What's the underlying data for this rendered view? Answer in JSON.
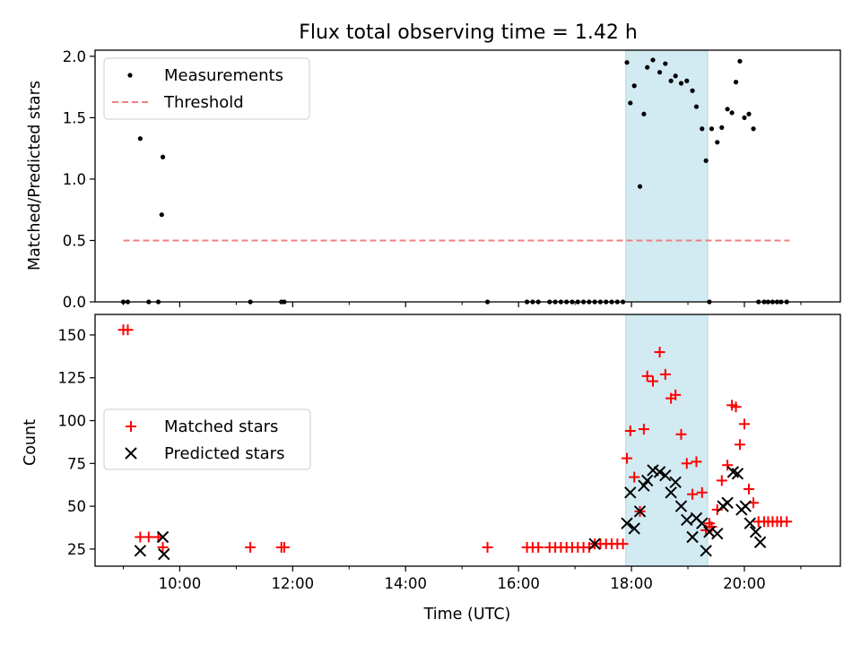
{
  "figure": {
    "title": "Flux total observing time = 1.42 h",
    "xlabel": "Time (UTC)"
  },
  "colors": {
    "measurements": "#000000",
    "threshold": "#f08080",
    "matched": "#ff0000",
    "predicted": "#000000",
    "highlight": "#add8e6"
  },
  "chart_data": [
    {
      "type": "scatter",
      "panel": "top",
      "ylabel": "Matched/Predicted stars",
      "xlim": [
        8.5,
        21.7
      ],
      "ylim": [
        0,
        2.05
      ],
      "yticks": [
        0.0,
        0.5,
        1.0,
        1.5,
        2.0
      ],
      "ytick_labels": [
        "0.0",
        "0.5",
        "1.0",
        "1.5",
        "2.0"
      ],
      "xticks": [
        10,
        12,
        14,
        16,
        18,
        20
      ],
      "grid": false,
      "legend_position": "upper-left",
      "highlight_span": [
        17.9,
        19.35
      ],
      "series": [
        {
          "name": "Measurements",
          "marker": "dot",
          "x": [
            9.0,
            9.08,
            9.3,
            9.45,
            9.62,
            9.68,
            9.7,
            11.25,
            11.8,
            11.85,
            15.45,
            16.15,
            16.25,
            16.35,
            16.55,
            16.65,
            16.75,
            16.85,
            16.95,
            17.05,
            17.15,
            17.25,
            17.35,
            17.45,
            17.55,
            17.65,
            17.75,
            17.85,
            17.92,
            17.98,
            18.05,
            18.15,
            18.22,
            18.28,
            18.38,
            18.5,
            18.6,
            18.7,
            18.78,
            18.88,
            18.98,
            19.08,
            19.15,
            19.25,
            19.32,
            19.38,
            19.42,
            19.52,
            19.6,
            19.7,
            19.78,
            19.85,
            19.92,
            20.0,
            20.08,
            20.16,
            20.25,
            20.35,
            20.42,
            20.5,
            20.58,
            20.65,
            20.75
          ],
          "y": [
            0.0,
            0.0,
            1.33,
            0.0,
            0.0,
            0.71,
            1.18,
            0.0,
            0.0,
            0.0,
            0.0,
            0.0,
            0.0,
            0.0,
            0.0,
            0.0,
            0.0,
            0.0,
            0.0,
            0.0,
            0.0,
            0.0,
            0.0,
            0.0,
            0.0,
            0.0,
            0.0,
            0.0,
            1.95,
            1.62,
            1.76,
            0.94,
            1.53,
            1.91,
            1.97,
            1.87,
            1.94,
            1.8,
            1.84,
            1.78,
            1.8,
            1.72,
            1.59,
            1.41,
            1.15,
            0.0,
            1.41,
            1.3,
            1.42,
            1.57,
            1.54,
            1.79,
            1.96,
            1.5,
            1.53,
            1.41,
            0.0,
            0.0,
            0.0,
            0.0,
            0.0,
            0.0,
            0.0
          ]
        },
        {
          "name": "Threshold",
          "marker": "dashed-line",
          "x": [
            9.0,
            20.8
          ],
          "y": [
            0.5,
            0.5
          ]
        }
      ]
    },
    {
      "type": "scatter",
      "panel": "bottom",
      "ylabel": "Count",
      "xlabel": "Time (UTC)",
      "xlim": [
        8.5,
        21.7
      ],
      "ylim": [
        15,
        162
      ],
      "yticks": [
        25,
        50,
        75,
        100,
        125,
        150
      ],
      "xticks": [
        10,
        12,
        14,
        16,
        18,
        20
      ],
      "xtick_labels": [
        "10:00",
        "12:00",
        "14:00",
        "16:00",
        "18:00",
        "20:00"
      ],
      "grid": false,
      "legend_position": "center-left",
      "highlight_span": [
        17.9,
        19.35
      ],
      "series": [
        {
          "name": "Matched stars",
          "marker": "plus",
          "x": [
            9.0,
            9.08,
            9.3,
            9.45,
            9.62,
            9.7,
            11.25,
            11.8,
            11.85,
            15.45,
            16.15,
            16.25,
            16.35,
            16.55,
            16.65,
            16.75,
            16.85,
            16.95,
            17.05,
            17.15,
            17.25,
            17.35,
            17.45,
            17.55,
            17.65,
            17.75,
            17.85,
            17.92,
            17.98,
            18.05,
            18.15,
            18.22,
            18.28,
            18.38,
            18.5,
            18.6,
            18.7,
            18.78,
            18.88,
            18.98,
            19.08,
            19.15,
            19.25,
            19.32,
            19.38,
            19.42,
            19.52,
            19.6,
            19.7,
            19.78,
            19.85,
            19.92,
            20.0,
            20.08,
            20.16,
            20.25,
            20.35,
            20.42,
            20.5,
            20.58,
            20.65,
            20.75
          ],
          "y": [
            153,
            153,
            32,
            32,
            32,
            26,
            26,
            26,
            26,
            26,
            26,
            26,
            26,
            26,
            26,
            26,
            26,
            26,
            26,
            26,
            26,
            28,
            28,
            28,
            28,
            28,
            28,
            78,
            94,
            67,
            47,
            95,
            126,
            123,
            140,
            127,
            113,
            115,
            92,
            75,
            57,
            76,
            58,
            36,
            40,
            38,
            48,
            65,
            74,
            109,
            108,
            86,
            98,
            60,
            52,
            41,
            41,
            41,
            41,
            41,
            41,
            41
          ]
        },
        {
          "name": "Predicted stars",
          "marker": "x",
          "x": [
            9.3,
            9.7,
            9.72,
            17.35,
            17.92,
            17.98,
            18.05,
            18.15,
            18.22,
            18.28,
            18.38,
            18.5,
            18.6,
            18.7,
            18.78,
            18.88,
            18.98,
            19.08,
            19.15,
            19.25,
            19.32,
            19.38,
            19.52,
            19.62,
            19.7,
            19.8,
            19.88,
            19.95,
            20.02,
            20.1,
            20.2,
            20.28
          ],
          "y": [
            24,
            32,
            22,
            28,
            40,
            58,
            37,
            47,
            62,
            65,
            71,
            70,
            68,
            58,
            64,
            50,
            42,
            32,
            43,
            40,
            24,
            35,
            34,
            50,
            52,
            70,
            69,
            48,
            50,
            40,
            35,
            29
          ]
        }
      ]
    }
  ]
}
